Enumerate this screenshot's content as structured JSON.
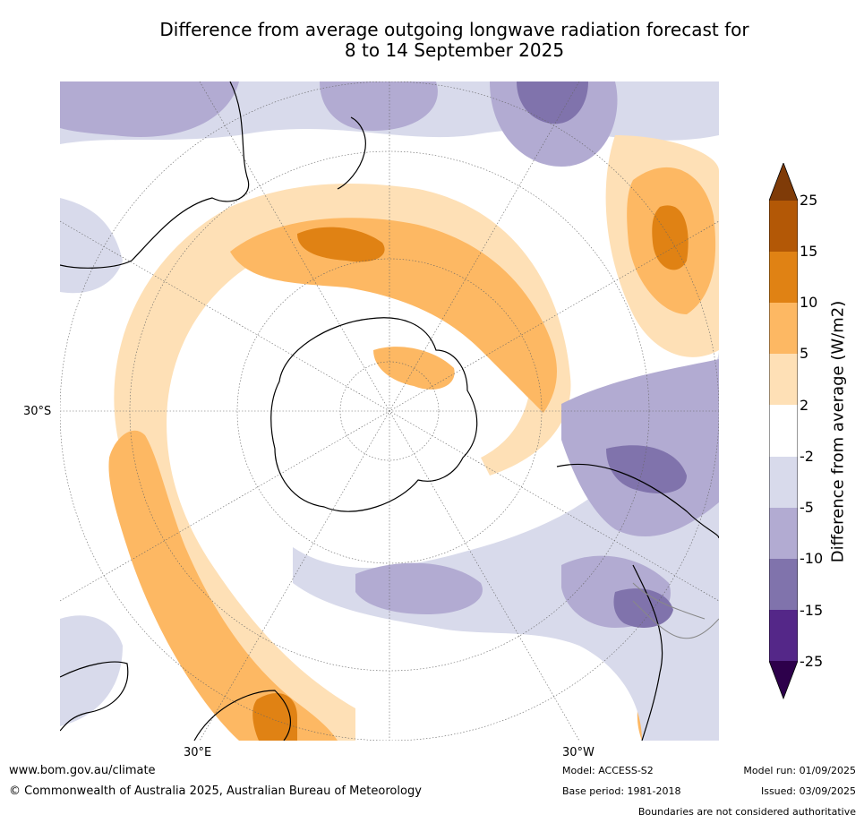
{
  "title_line1": "Difference from average outgoing longwave radiation forecast for",
  "title_line2": "8 to 14 September 2025",
  "lat_label": "30°S",
  "lon_labels": [
    "30°E",
    "30°W"
  ],
  "colorbar": {
    "label": "Difference from average (W/m2)",
    "ticks": [
      "25",
      "15",
      "10",
      "5",
      "2",
      "-2",
      "-5",
      "-10",
      "-15",
      "-25"
    ],
    "colors": [
      "#7f3b08",
      "#b35806",
      "#e08214",
      "#fdb863",
      "#fee0b6",
      "#ffffff",
      "#d8daeb",
      "#b2abd2",
      "#8073ac",
      "#542788",
      "#2d004b"
    ]
  },
  "footer": {
    "website": "www.bom.gov.au/climate",
    "copyright": "© Commonwealth of Australia 2025, Australian Bureau of Meteorology",
    "model": "Model: ACCESS-S2",
    "base_period": "Base period: 1981-2018",
    "model_run": "Model run: 01/09/2025",
    "issued": "Issued: 03/09/2025",
    "disclaimer": "Boundaries are not considered authoritative"
  }
}
